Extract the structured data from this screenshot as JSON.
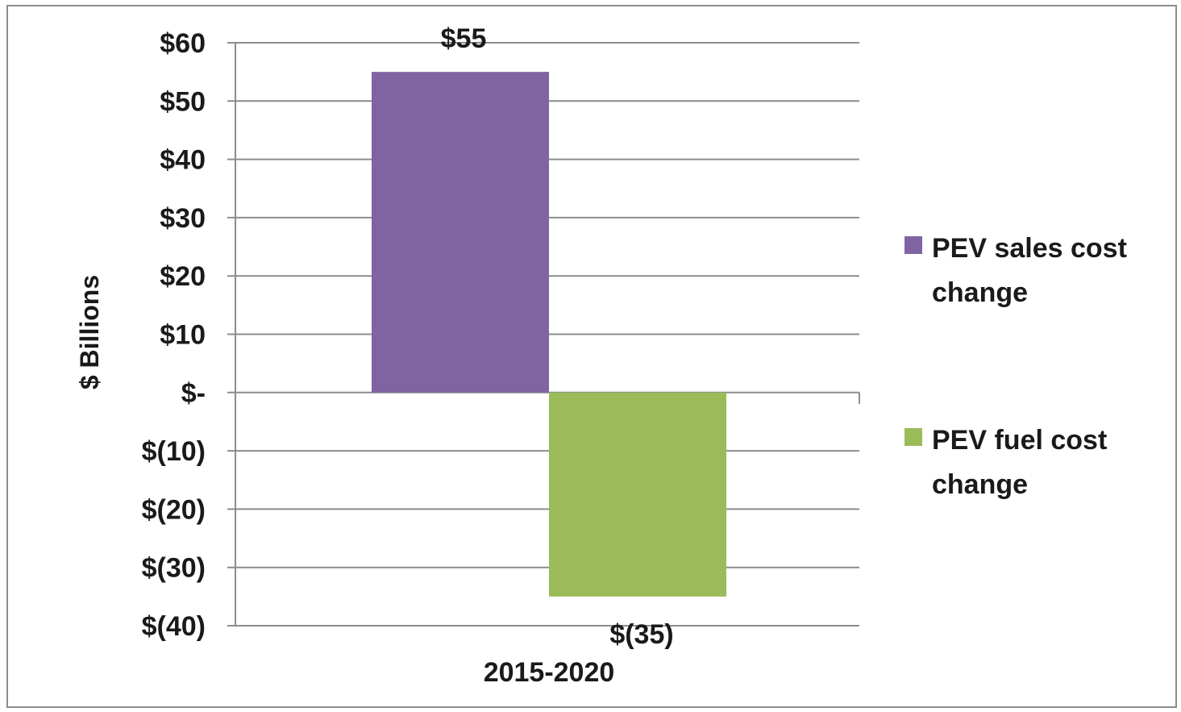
{
  "chart_data": {
    "type": "bar",
    "title": "",
    "xlabel": "",
    "ylabel": "$ Billions",
    "categories": [
      "2015-2020"
    ],
    "series": [
      {
        "name": "PEV sales cost change",
        "legend_lines": [
          "PEV sales cost",
          "change"
        ],
        "values": [
          55
        ],
        "data_labels": [
          "$55"
        ],
        "color": "#8064a2"
      },
      {
        "name": "PEV fuel cost change",
        "legend_lines": [
          "PEV fuel cost",
          "change"
        ],
        "values": [
          -35
        ],
        "data_labels": [
          "$(35)"
        ],
        "color": "#9bbb59"
      }
    ],
    "ylim": [
      -40,
      60
    ],
    "yticks": [
      60,
      50,
      40,
      30,
      20,
      10,
      0,
      -10,
      -20,
      -30,
      -40
    ],
    "ytick_labels": [
      "$60",
      "$50",
      "$40",
      "$30",
      "$20",
      "$10",
      "$-",
      "$(10)",
      "$(20)",
      "$(30)",
      "$(40)"
    ],
    "grid": true,
    "legend_position": "right",
    "gridline_color": "#8c8c8c"
  }
}
